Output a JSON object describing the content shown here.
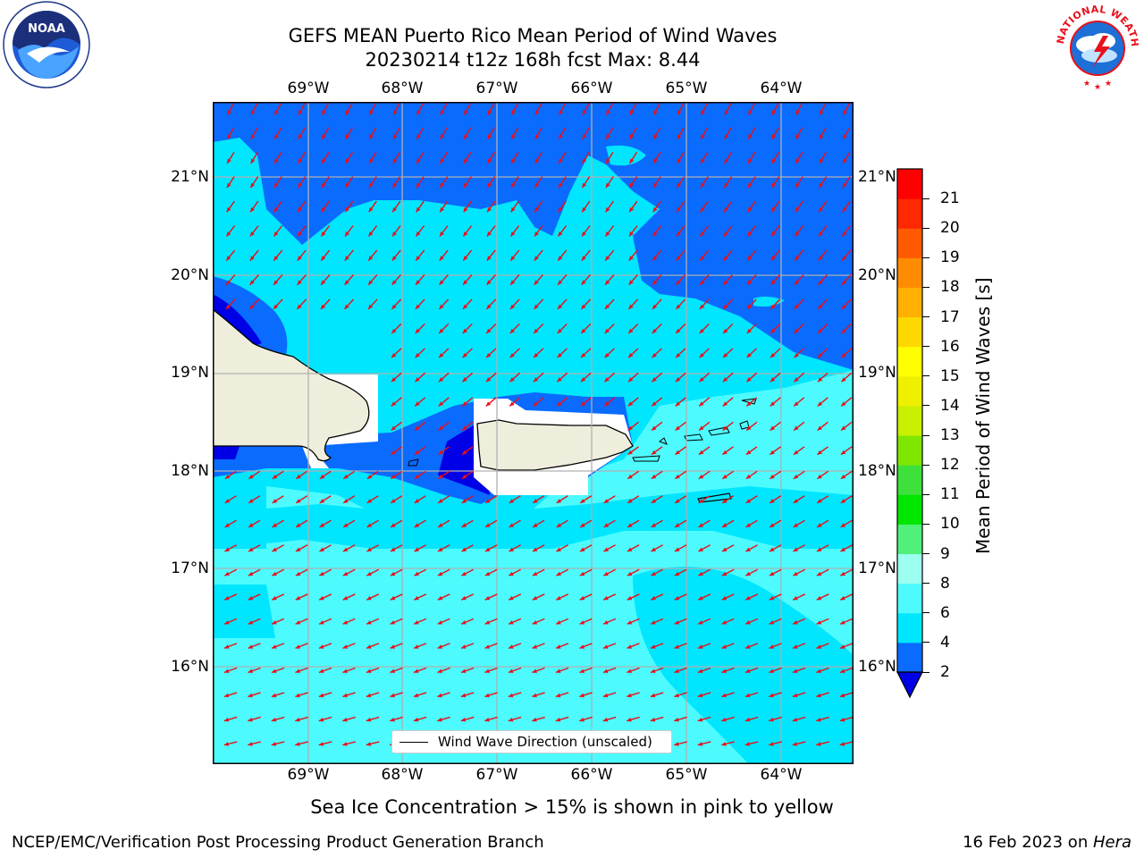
{
  "title_line1": "GEFS MEAN Puerto Rico Mean Period of Wind Waves",
  "title_line2": "20230214 t12z 168h fcst   Max: 8.44",
  "logos": {
    "left": "NOAA",
    "right": "NATIONAL WEATHER SERVICE"
  },
  "lon_labels": [
    "69°W",
    "68°W",
    "67°W",
    "66°W",
    "65°W",
    "64°W"
  ],
  "lat_labels": [
    "21°N",
    "20°N",
    "19°N",
    "18°N",
    "17°N",
    "16°N"
  ],
  "legend_text": "Wind Wave Direction (unscaled)",
  "colorbar": {
    "label": "Mean Period of Wind Waves [s]",
    "ticks": [
      "2",
      "4",
      "6",
      "8",
      "9",
      "10",
      "11",
      "12",
      "13",
      "14",
      "15",
      "16",
      "17",
      "18",
      "19",
      "20",
      "21"
    ],
    "colors": [
      "#0a6bff",
      "#00e6ff",
      "#4dfbff",
      "#9dfff0",
      "#50f07a",
      "#00e600",
      "#3ee03c",
      "#7fe600",
      "#c8f000",
      "#eef000",
      "#ffff00",
      "#ffd800",
      "#ffb000",
      "#ff8c00",
      "#ff5a00",
      "#ff2800",
      "#ff0000"
    ],
    "under_color": "#0000e6"
  },
  "note": "Sea Ice Concentration > 15% is shown in pink to yellow",
  "footer_left": "NCEP/EMC/Verification Post Processing Product Generation Branch",
  "footer_right_date": "16 Feb 2023 on ",
  "footer_right_host": "Hera"
}
